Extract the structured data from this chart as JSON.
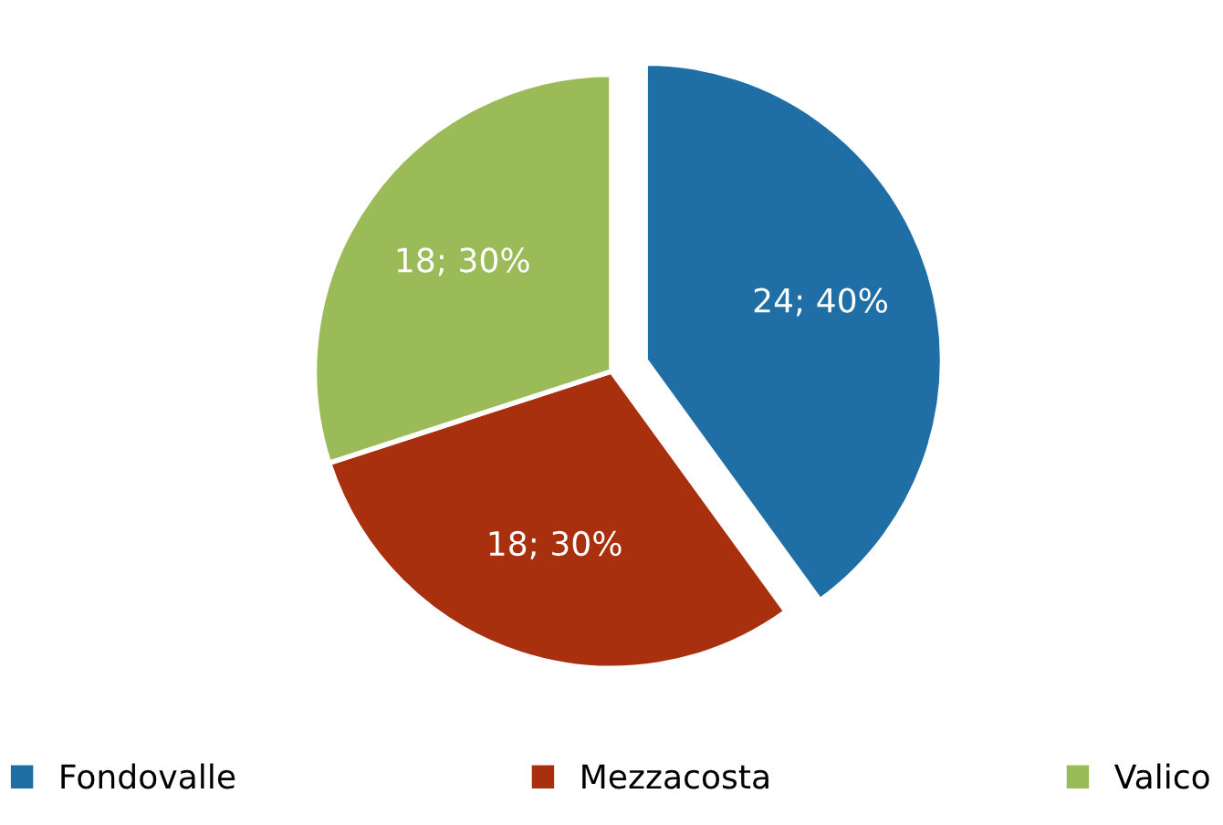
{
  "chart_data": {
    "type": "pie",
    "categories": [
      "Fondovalle",
      "Mezzacosta",
      "Valico"
    ],
    "values": [
      24,
      18,
      18
    ],
    "colors": [
      "#1f6fa6",
      "#a8300f",
      "#9bbb59"
    ],
    "value_labels": [
      "24; 40%",
      "18; 30%",
      "18; 30%"
    ],
    "legend": "bottom"
  }
}
